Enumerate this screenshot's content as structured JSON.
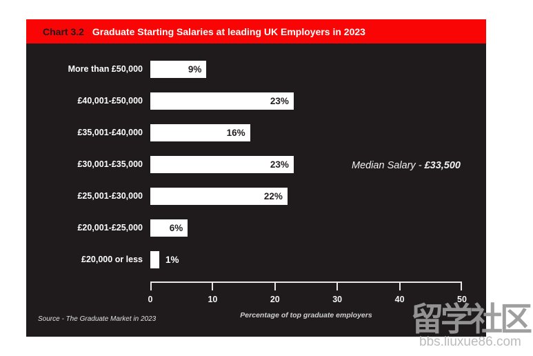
{
  "header": {
    "chart_label": "Chart 3.2",
    "title": "Graduate Starting Salaries at leading UK Employers in 2023"
  },
  "chart_data": {
    "type": "bar",
    "orientation": "horizontal",
    "categories": [
      "More than £50,000",
      "£40,001-£50,000",
      "£35,001-£40,000",
      "£30,001-£35,000",
      "£25,001-£30,000",
      "£20,001-£25,000",
      "£20,000 or less"
    ],
    "values": [
      9,
      23,
      16,
      23,
      22,
      6,
      1
    ],
    "value_labels": [
      "9%",
      "23%",
      "16%",
      "23%",
      "22%",
      "6%",
      "1%"
    ],
    "xlabel": "Percentage of top graduate employers",
    "x_ticks": [
      "0",
      "10",
      "20",
      "30",
      "40",
      "50"
    ],
    "x_tick_values": [
      0,
      10,
      20,
      30,
      40,
      50
    ],
    "xlim": [
      0,
      50
    ],
    "grid": false,
    "legend": null,
    "annotation": "Median Salary - £33,500"
  },
  "median": {
    "prefix": "Median Salary - ",
    "value": "£33,500"
  },
  "source": "Source - The Graduate Market in 2023",
  "watermark": {
    "text": "留学社区",
    "url": "bbs.liuxue86.com"
  },
  "colors": {
    "header_red": "#fa0505",
    "chart_bg": "#1f1b1c",
    "bar_fill": "#ffffff",
    "dark_text": "#231f20",
    "axis": "#e8e8e8"
  }
}
